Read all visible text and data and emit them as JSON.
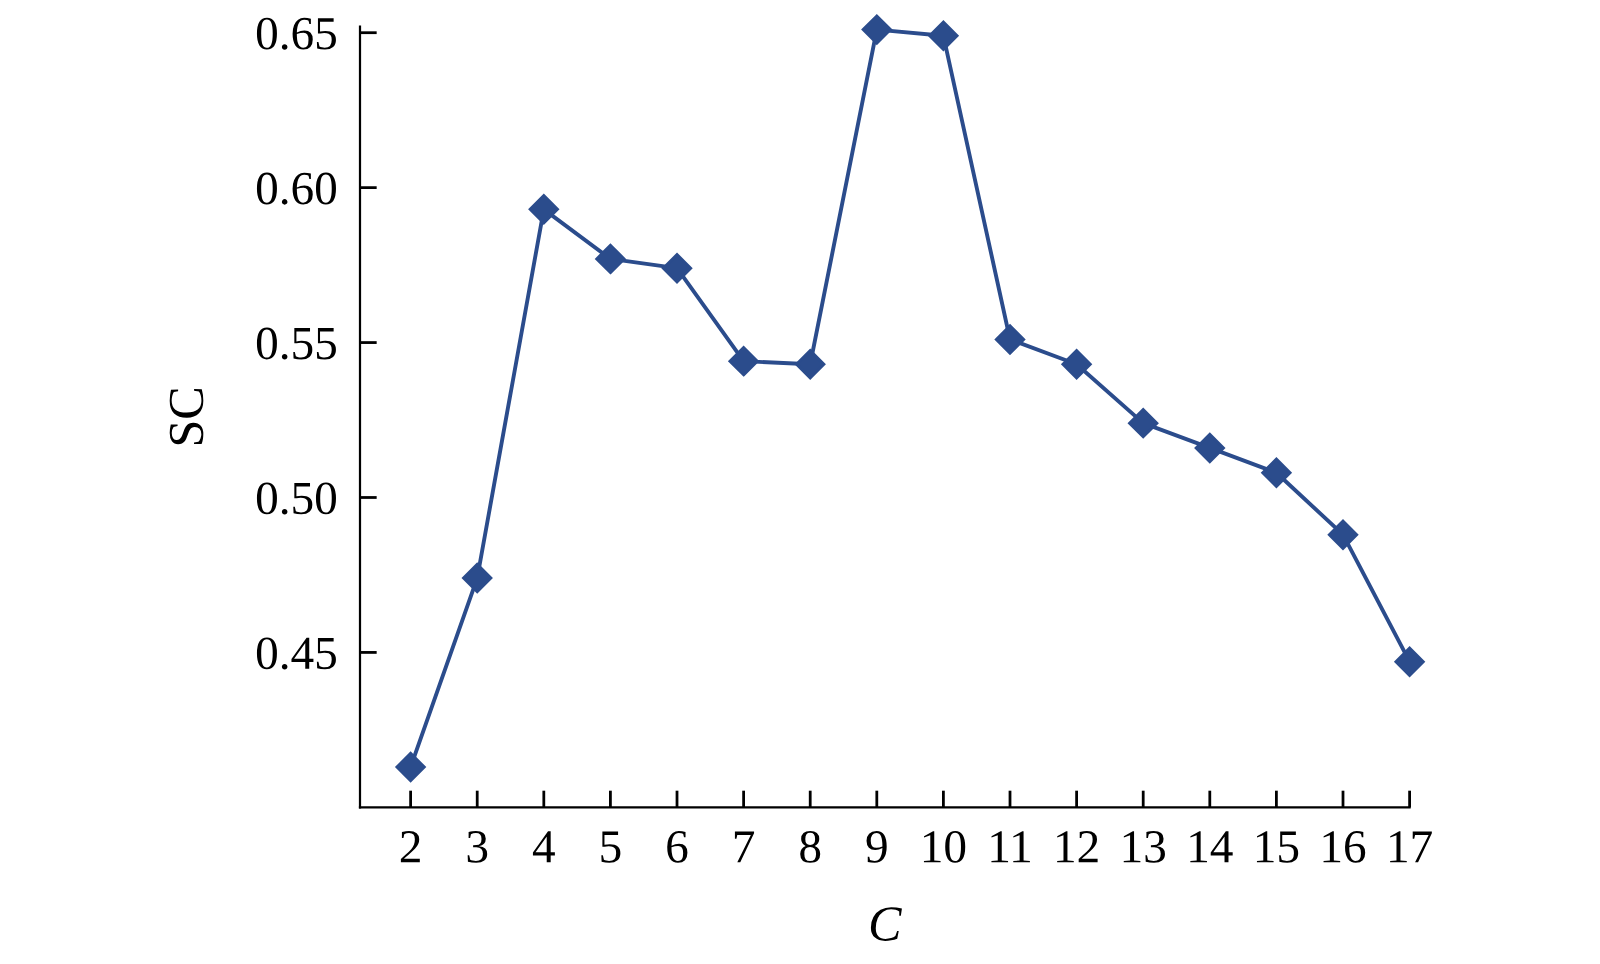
{
  "chart_data": {
    "type": "line",
    "xlabel": "C",
    "ylabel": "SC",
    "categories": [
      "2",
      "3",
      "4",
      "5",
      "6",
      "7",
      "8",
      "9",
      "10",
      "11",
      "12",
      "13",
      "14",
      "15",
      "16",
      "17"
    ],
    "series": [
      {
        "color": "#2b4c8c",
        "values": [
          0.413,
          0.474,
          0.593,
          0.577,
          0.574,
          0.544,
          0.543,
          0.651,
          0.649,
          0.551,
          0.543,
          0.524,
          0.516,
          0.508,
          0.488,
          0.447
        ]
      }
    ],
    "ylim": [
      0.4,
      0.652
    ],
    "yticks": [
      0.45,
      {
        "value": 0.5,
        "label": "0.50"
      },
      0.55,
      {
        "value": 0.6,
        "label": "0.60"
      },
      0.65
    ],
    "marker": "diamond",
    "line_style": "solid"
  }
}
